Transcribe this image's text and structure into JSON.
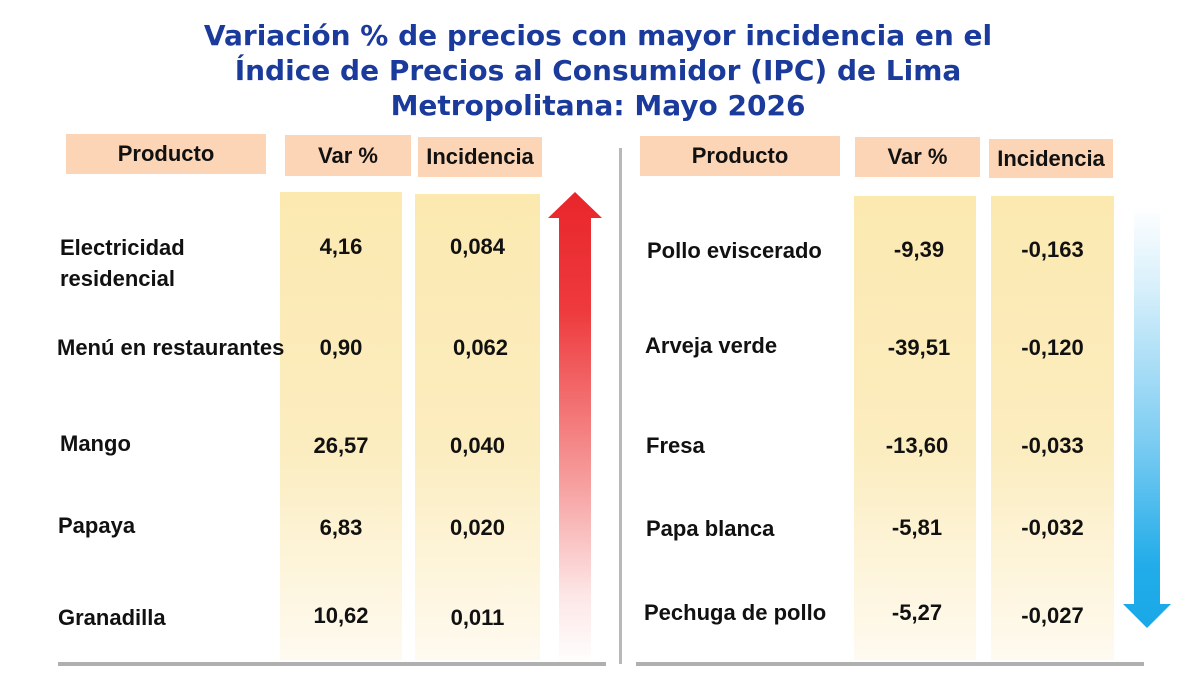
{
  "title": {
    "line1": "Variación % de precios con mayor incidencia en el",
    "line2": "Índice de Precios al Consumidor (IPC) de Lima",
    "line3": "Metropolitana: Mayo 2026"
  },
  "left_table": {
    "headers": {
      "product": "Producto",
      "var": "Var %",
      "incidence": "Incidencia"
    },
    "trend_icon": "arrow-up-icon",
    "rows": [
      {
        "product_line1": "Electricidad",
        "product_line2": "residencial",
        "var": "4,16",
        "incidence": "0,084"
      },
      {
        "product_line1": "Menú en restaurantes",
        "product_line2": "",
        "var": "0,90",
        "incidence": "0,062"
      },
      {
        "product_line1": "Mango",
        "product_line2": "",
        "var": "26,57",
        "incidence": "0,040"
      },
      {
        "product_line1": "Papaya",
        "product_line2": "",
        "var": "6,83",
        "incidence": "0,020"
      },
      {
        "product_line1": "Granadilla",
        "product_line2": "",
        "var": "10,62",
        "incidence": "0,011"
      }
    ]
  },
  "right_table": {
    "headers": {
      "product": "Producto",
      "var": "Var %",
      "incidence": "Incidencia"
    },
    "trend_icon": "arrow-down-icon",
    "rows": [
      {
        "product": "Pollo eviscerado",
        "var": "-9,39",
        "incidence": "-0,163"
      },
      {
        "product": "Arveja verde",
        "var": "-39,51",
        "incidence": "-0,120"
      },
      {
        "product": "Fresa",
        "var": "-13,60",
        "incidence": "-0,033"
      },
      {
        "product": "Papa blanca",
        "var": "-5,81",
        "incidence": "-0,032"
      },
      {
        "product": "Pechuga de pollo",
        "var": "-5,27",
        "incidence": "-0,027"
      }
    ]
  },
  "colors": {
    "title": "#1a3a9c",
    "header_bg": "#fbd5b5",
    "column_bg": "#fbe9b0",
    "up_arrow": "#e8262b",
    "down_arrow": "#1aa8e8"
  }
}
